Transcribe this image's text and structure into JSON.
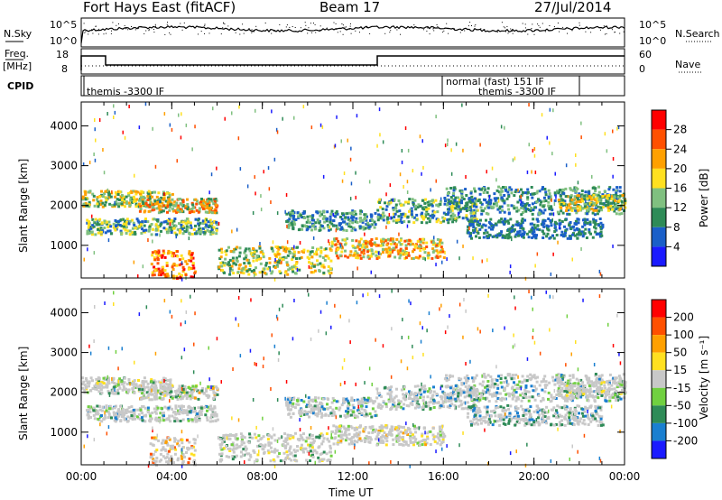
{
  "header": {
    "station": "Fort Hays East (fitACF)",
    "beam": "Beam 17",
    "date": "27/Jul/2014"
  },
  "top_panel": {
    "left_label": "N.Sky",
    "left_ticks": [
      "10^5",
      "10^0"
    ],
    "right_ticks": [
      "10^5",
      "10^0"
    ],
    "right_label": "N.Search"
  },
  "freq_panel": {
    "left_label_1": "Freq.",
    "left_label_2": "[MHz]",
    "left_ticks": [
      "18",
      "8"
    ],
    "right_ticks": [
      "60",
      "0"
    ],
    "right_label": "Nave"
  },
  "cpid_panel": {
    "label": "CPID",
    "programs": [
      "themis -3300 IF",
      "normal (fast) 151 IF",
      "themis -3300 IF"
    ]
  },
  "chart_data": [
    {
      "type": "heatmap",
      "ylabel": "Slant Range [km]",
      "xlabel": "Time UT",
      "x_ticks": [
        "00:00",
        "04:00",
        "08:00",
        "12:00",
        "16:00",
        "20:00",
        "00:00"
      ],
      "y_ticks": [
        "1000",
        "2000",
        "3000",
        "4000"
      ],
      "ylim": [
        180,
        4600
      ],
      "colorbar": {
        "label": "Power [dB]",
        "ticks": [
          "4",
          "8",
          "12",
          "16",
          "20",
          "24",
          "28"
        ],
        "colors": [
          "#1a1aff",
          "#1a5fc8",
          "#2e8b57",
          "#80c080",
          "#ffe020",
          "#ffa000",
          "#ff5000",
          "#ff0000"
        ]
      }
    },
    {
      "type": "heatmap",
      "ylabel": "Slant Range [km]",
      "xlabel": "Time UT",
      "x_ticks": [
        "00:00",
        "04:00",
        "08:00",
        "12:00",
        "16:00",
        "20:00",
        "00:00"
      ],
      "y_ticks": [
        "1000",
        "2000",
        "3000",
        "4000"
      ],
      "ylim": [
        180,
        4600
      ],
      "colorbar": {
        "label": "Velocity [m s⁻¹]",
        "ticks": [
          "200",
          "100",
          "50",
          "15",
          "-15",
          "-50",
          "-100",
          "-200"
        ],
        "colors": [
          "#1a1aff",
          "#1a7fd0",
          "#2e8b57",
          "#70d040",
          "#c8c8c8",
          "#ffe020",
          "#ffa000",
          "#ff5000",
          "#ff0000"
        ]
      }
    }
  ],
  "time_axis_label": "Time UT"
}
